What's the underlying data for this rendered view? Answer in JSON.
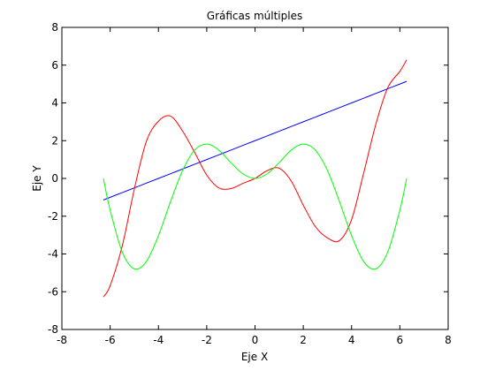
{
  "chart_data": {
    "type": "line",
    "title": "Gráficas múltiples",
    "xlabel": "Eje X",
    "ylabel": "Eje Y",
    "xlim": [
      -8,
      8
    ],
    "ylim": [
      -8,
      8
    ],
    "xticks": [
      -8,
      -6,
      -4,
      -2,
      0,
      2,
      4,
      6,
      8
    ],
    "yticks": [
      -8,
      -6,
      -4,
      -2,
      0,
      2,
      4,
      6,
      8
    ],
    "grid": false,
    "legend": "none",
    "x": [
      -6.28,
      -6.0,
      -5.5,
      -5.0,
      -4.5,
      -4.0,
      -3.5,
      -3.0,
      -2.5,
      -2.0,
      -1.5,
      -1.0,
      -0.5,
      0.0,
      0.5,
      1.0,
      1.5,
      2.0,
      2.5,
      3.0,
      3.5,
      4.0,
      4.5,
      5.0,
      5.5,
      6.0,
      6.28
    ],
    "series": [
      {
        "color": "#0000ff",
        "values": [
          -1.14,
          -1.0,
          -0.75,
          -0.5,
          -0.25,
          0.0,
          0.25,
          0.5,
          0.75,
          1.0,
          1.25,
          1.5,
          1.75,
          2.0,
          2.25,
          2.5,
          2.75,
          3.0,
          3.25,
          3.5,
          3.75,
          4.0,
          4.25,
          4.5,
          4.75,
          5.0,
          5.14
        ]
      },
      {
        "color": "#ff0000",
        "values": [
          -6.28,
          -5.68,
          -3.58,
          -0.57,
          1.96,
          3.03,
          3.3,
          2.51,
          1.38,
          0.18,
          -0.5,
          -0.54,
          -0.26,
          0.0,
          0.41,
          0.54,
          -0.14,
          -1.42,
          -2.55,
          -3.15,
          -3.29,
          -2.18,
          0.28,
          2.85,
          4.81,
          5.67,
          6.28
        ]
      },
      {
        "color": "#00ff00",
        "values": [
          0.0,
          -1.68,
          -3.89,
          -4.79,
          -4.4,
          -3.03,
          -1.23,
          0.42,
          1.5,
          1.82,
          1.5,
          0.84,
          0.24,
          0.0,
          0.24,
          0.84,
          1.5,
          1.82,
          1.5,
          0.42,
          -1.23,
          -3.03,
          -4.4,
          -4.79,
          -3.89,
          -1.68,
          0.0
        ]
      }
    ]
  }
}
